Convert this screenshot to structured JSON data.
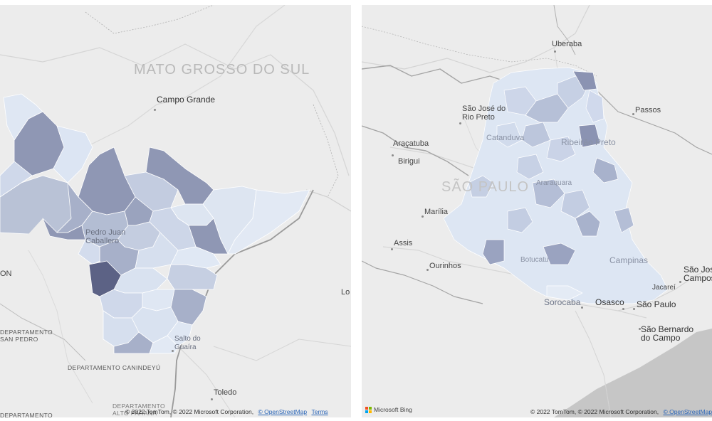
{
  "left_map": {
    "region_label": "MATO GROSSO DO SUL",
    "cities": {
      "campo_grande": "Campo Grande",
      "pedro_juan": "Pedro Juan\nCaballero",
      "salto_guaira": "Salto do\nGuaíra",
      "toledo": "Toledo"
    },
    "departments": {
      "san_pedro": "DEPARTAMENTO\nSAN PEDRO",
      "canindeyu": "DEPARTAMENTO CANINDEYÚ",
      "alto_parana": "DEPARTAMENTO\nALTO PARANÁ",
      "partial_dept_bottom": "DEPARTAMENTO"
    },
    "partial_labels": {
      "on": "ON",
      "lou": "Lo"
    },
    "attribution": "© 2022 TomTom, © 2022 Microsoft Corporation",
    "osm_link": "© OpenStreetMap",
    "terms_link": "Terms"
  },
  "right_map": {
    "region_label": "SÃO PAULO",
    "cities": {
      "uberaba": "Uberaba",
      "sao_jose_rio_preto": "São José do\nRio Preto",
      "catanduva": "Catanduva",
      "ribeirao_preto": "Ribeirão Preto",
      "passos": "Passos",
      "aracatuba": "Araçatuba",
      "birigui": "Birigui",
      "araraquara": "Araraquara",
      "marilia": "Marília",
      "assis": "Assis",
      "ourinhos": "Ourinhos",
      "botucatu": "Botucatu",
      "campinas": "Campinas",
      "sorocaba": "Sorocaba",
      "osasco": "Osasco",
      "sao_paulo": "São Paulo",
      "sao_bernardo": "São Bernardo\ndo Campo",
      "jacarei": "Jacareí",
      "sao_jose_campos": "São José\nCampos"
    },
    "bing_label": "Microsoft Bing",
    "attribution": "© 2022 TomTom, © 2022 Microsoft Corporation,",
    "osm_link": "© OpenStreetMap"
  },
  "colors": {
    "map_background": "#ececec",
    "road": "#d8d8d8",
    "border": "#a9a9a9",
    "river": "#9a9a9a",
    "fill_lightest": "#e4ebf5",
    "fill_light": "#d3dded",
    "fill_mid": "#b7c1d6",
    "fill_dark": "#8f97b4",
    "fill_darkest": "#5c6285",
    "ocean": "#c6c6c6"
  }
}
